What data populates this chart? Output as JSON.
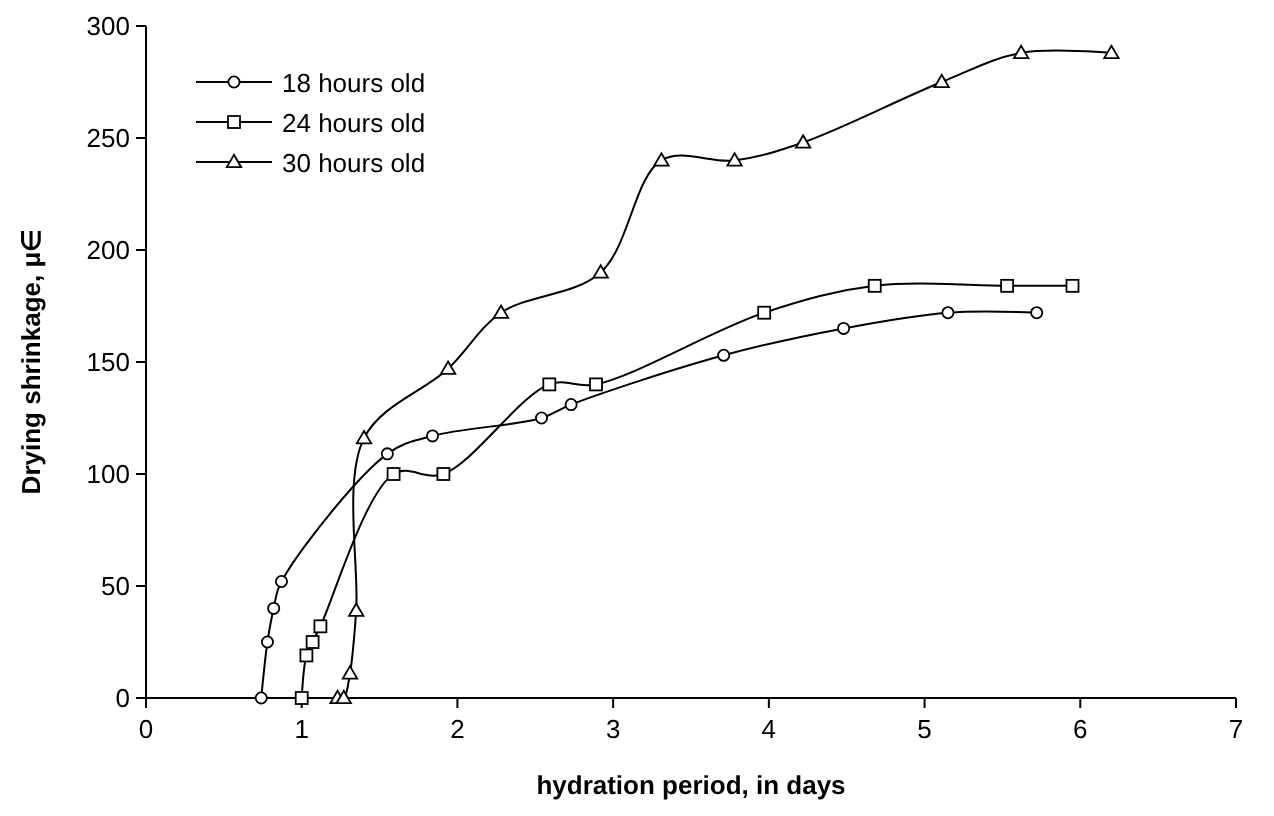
{
  "chart_data": {
    "type": "line",
    "xlabel": "hydration period, in days",
    "ylabel": "Drying shrinkage, μ∈",
    "xlim": [
      0,
      7
    ],
    "xticks": [
      0,
      1,
      2,
      3,
      4,
      5,
      6,
      7
    ],
    "ylim": [
      0,
      300
    ],
    "yticks": [
      0,
      50,
      100,
      150,
      200,
      250,
      300
    ],
    "grid": false,
    "legend": "top left",
    "line_style": "solid",
    "series": [
      {
        "name": "18 hours old",
        "color": "#000000",
        "marker": "circle",
        "x": [
          0.74,
          0.78,
          0.82,
          0.87,
          1.55,
          1.84,
          2.54,
          2.73,
          3.71,
          4.48,
          5.15,
          5.72
        ],
        "values": [
          0,
          25,
          40,
          52,
          109,
          117,
          125,
          131,
          153,
          165,
          172,
          172
        ]
      },
      {
        "name": "24 hours old",
        "color": "#000000",
        "marker": "square",
        "x": [
          1.0,
          1.03,
          1.07,
          1.12,
          1.59,
          1.91,
          2.59,
          2.89,
          3.97,
          4.68,
          5.53,
          5.95
        ],
        "values": [
          0,
          19,
          25,
          32,
          100,
          100,
          140,
          140,
          172,
          184,
          184,
          184
        ]
      },
      {
        "name": "30 hours old",
        "color": "#000000",
        "marker": "triangle",
        "x": [
          1.23,
          1.27,
          1.31,
          1.35,
          1.4,
          1.94,
          2.28,
          2.92,
          3.31,
          3.78,
          4.22,
          5.11,
          5.62,
          6.2
        ],
        "values": [
          0,
          0,
          11,
          39,
          116,
          147,
          172,
          190,
          240,
          240,
          248,
          275,
          288,
          288
        ]
      }
    ]
  }
}
